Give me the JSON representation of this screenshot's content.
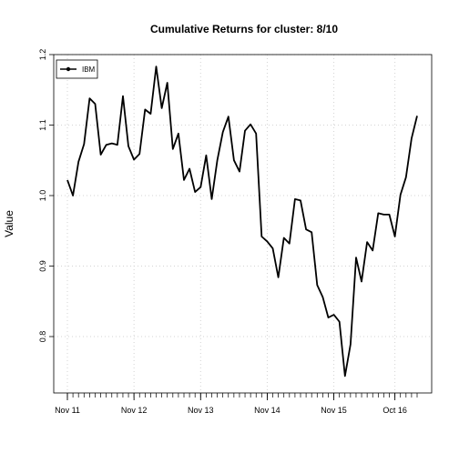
{
  "chart_data": {
    "type": "line",
    "title": "Cumulative Returns for cluster: 8/10",
    "xlabel": "",
    "ylabel": "Value",
    "ylim": [
      0.72,
      1.2
    ],
    "y_ticks": [
      0.8,
      0.9,
      1.0,
      1.1,
      1.2
    ],
    "y_tick_labels": [
      "0.8",
      "0.9",
      "1.0",
      "1.1",
      "1.2"
    ],
    "x_tick_labels": [
      {
        "label": "Nov 11",
        "index": 0
      },
      {
        "label": "Nov 12",
        "index": 12
      },
      {
        "label": "Nov 13",
        "index": 24
      },
      {
        "label": "Nov 14",
        "index": 36
      },
      {
        "label": "Nov 15",
        "index": 48
      },
      {
        "label": "Oct 16",
        "index": 59
      }
    ],
    "grid": true,
    "legend_position": "top-left",
    "series": [
      {
        "name": "IBM",
        "color": "#000000",
        "values": [
          1.022,
          1.0,
          1.048,
          1.073,
          1.138,
          1.13,
          1.058,
          1.072,
          1.074,
          1.072,
          1.141,
          1.07,
          1.051,
          1.059,
          1.122,
          1.116,
          1.183,
          1.124,
          1.16,
          1.066,
          1.088,
          1.022,
          1.038,
          1.005,
          1.012,
          1.057,
          0.995,
          1.05,
          1.09,
          1.112,
          1.05,
          1.034,
          1.092,
          1.101,
          1.088,
          0.942,
          0.935,
          0.925,
          0.884,
          0.94,
          0.932,
          0.995,
          0.993,
          0.952,
          0.948,
          0.873,
          0.856,
          0.827,
          0.831,
          0.821,
          0.744,
          0.789,
          0.912,
          0.878,
          0.934,
          0.922,
          0.975,
          0.973,
          0.973,
          0.942,
          1.001,
          1.026,
          1.081,
          1.113
        ]
      }
    ]
  }
}
